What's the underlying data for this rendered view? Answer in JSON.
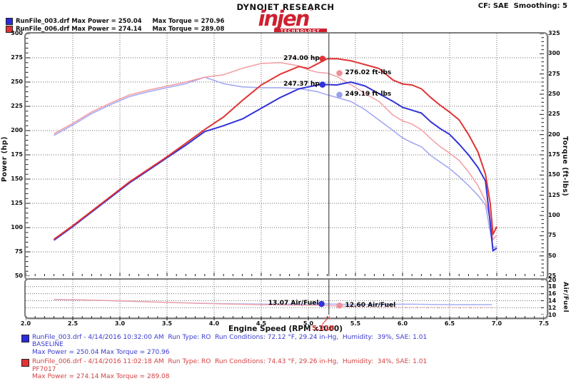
{
  "header": {
    "brand": "DYNOJET RESEARCH",
    "correction": "CF: SAE  Smoothing: 5",
    "logo": {
      "word": "injen",
      "tagline": "TECHNOLOGY",
      "tm": "™",
      "color": "#cf2030"
    },
    "legend_rows": [
      {
        "swatch_color": "#2b2bd8",
        "text": "RunFile_003.drf Max Power = 250.04     Max Torque = 270.96"
      },
      {
        "swatch_color": "#e03434",
        "text": "RunFile_006.drf Max Power = 274.14     Max Torque = 289.08"
      }
    ]
  },
  "chart_data": {
    "type": "line",
    "title": "",
    "xlabel": "Engine Speed (RPM x1000)",
    "xlim": [
      2.0,
      7.5
    ],
    "x_ticks": [
      2.0,
      2.5,
      3.0,
      3.5,
      4.0,
      4.5,
      5.0,
      5.5,
      6.0,
      6.5,
      7.0,
      7.5
    ],
    "x_minor_step": 0.1,
    "cursor_rpm": 5.218,
    "cursor_readout": "5.218",
    "main": {
      "left_axis": {
        "title": "Power (hp)",
        "min": 50,
        "max": 300,
        "tick_step": 25,
        "minor_step": 5
      },
      "right_axis": {
        "title": "Torque (ft-lbs)",
        "min": 25,
        "max": 325,
        "tick_step": 25,
        "minor_step": 5
      },
      "rpm": [
        2.3,
        2.5,
        2.7,
        2.9,
        3.1,
        3.3,
        3.5,
        3.7,
        3.9,
        4.1,
        4.3,
        4.5,
        4.7,
        4.9,
        5.0,
        5.1,
        5.2,
        5.3,
        5.45,
        5.6,
        5.75,
        5.9,
        6.0,
        6.1,
        6.2,
        6.3,
        6.4,
        6.5,
        6.6,
        6.7,
        6.8,
        6.88,
        6.93,
        6.96,
        7.0
      ],
      "series": [
        {
          "name": "torque-baseline",
          "legend": "RunFile_003.drf torque",
          "axis": "right",
          "color": "#a4aaf2",
          "width": 1.6,
          "values": [
            199,
            212,
            226,
            237,
            247,
            253,
            258,
            263,
            271,
            263,
            259,
            258,
            258,
            257,
            255,
            253,
            249.2,
            246,
            241,
            231,
            218,
            205,
            196,
            190,
            185,
            174,
            166,
            158,
            148,
            137,
            125,
            113,
            80,
            60,
            62
          ]
        },
        {
          "name": "torque-pf7017",
          "legend": "RunFile_006.drf torque",
          "axis": "right",
          "color": "#f2a2a8",
          "width": 1.6,
          "values": [
            201,
            214,
            228,
            239,
            249,
            255,
            260,
            265,
            271,
            274,
            282,
            288,
            289.1,
            285,
            280,
            277,
            276,
            272,
            262,
            251,
            241,
            224,
            217,
            213,
            206,
            195,
            185,
            177,
            168,
            154,
            137,
            118,
            95,
            70,
            76
          ]
        },
        {
          "name": "power-baseline",
          "legend": "RunFile_003.drf power",
          "axis": "left",
          "color": "#3232d8",
          "width": 2,
          "values": [
            87,
            101,
            116,
            131,
            146,
            159,
            172,
            185,
            199,
            205,
            212,
            223,
            234,
            243,
            245,
            247,
            247.4,
            247,
            250,
            246,
            238,
            230,
            224,
            221,
            218,
            209,
            202,
            196,
            186,
            175,
            162,
            148,
            105,
            76,
            79
          ]
        },
        {
          "name": "power-pf7017",
          "legend": "RunFile_006.drf power",
          "axis": "left",
          "color": "#e03434",
          "width": 2,
          "values": [
            88,
            102,
            117,
            132,
            147,
            160,
            173,
            187,
            201,
            214,
            231,
            247,
            258,
            266,
            264,
            269,
            274,
            274.1,
            272,
            268,
            264,
            252,
            248,
            247,
            243,
            234,
            226,
            219,
            211,
            196,
            178,
            155,
            125,
            93,
            101
          ]
        }
      ],
      "markers": [
        {
          "name": "power-cursor-pf7017",
          "label": "274.00 hp",
          "axis": "left",
          "rpm": 5.15,
          "value": 274.0,
          "color": "#e03434",
          "side": "left"
        },
        {
          "name": "torque-cursor-pf7017",
          "label": "276.02 ft-lbs",
          "axis": "right",
          "rpm": 5.33,
          "value": 276.02,
          "color": "#ef8f96",
          "side": "right"
        },
        {
          "name": "power-cursor-baseline",
          "label": "247.37 hp",
          "axis": "left",
          "rpm": 5.15,
          "value": 247.37,
          "color": "#3232d8",
          "side": "left"
        },
        {
          "name": "torque-cursor-baseline",
          "label": "249.19 ft-lbs",
          "axis": "right",
          "rpm": 5.33,
          "value": 249.19,
          "color": "#98a0ee",
          "side": "right"
        }
      ]
    },
    "af": {
      "right_axis": {
        "title": "Air/Fuel",
        "min": 10,
        "max": 20,
        "ticks": [
          20,
          18,
          16,
          14,
          12,
          10
        ],
        "grid": [
          18,
          16,
          14,
          12
        ]
      },
      "rpm": [
        2.3,
        2.6,
        3.0,
        3.4,
        3.8,
        4.2,
        4.6,
        5.0,
        5.2,
        5.5,
        5.8,
        6.1,
        6.4,
        6.7,
        6.95
      ],
      "series": [
        {
          "name": "af-baseline",
          "legend": "RunFile_003.drf air/fuel",
          "color": "#a4aaf2",
          "width": 1.4,
          "values": [
            14.3,
            14.2,
            13.9,
            13.6,
            13.3,
            13.1,
            13.0,
            13.05,
            13.07,
            12.9,
            12.95,
            13.0,
            12.9,
            12.85,
            12.9
          ]
        },
        {
          "name": "af-pf7017",
          "legend": "RunFile_006.drf air/fuel",
          "color": "#f2a2a8",
          "width": 1.4,
          "dash_after": 5.25,
          "values": [
            14.35,
            14.25,
            13.95,
            13.6,
            13.25,
            13.0,
            12.8,
            12.7,
            12.6,
            12.3,
            12.15,
            12.1,
            12.05,
            12.0,
            12.05
          ]
        }
      ],
      "markers": [
        {
          "name": "af-cursor-baseline",
          "label": "13.07 Air/Fuel",
          "rpm": 5.14,
          "value": 13.07,
          "color": "#3232d8",
          "side": "left"
        },
        {
          "name": "af-cursor-pf7017",
          "label": "12.60 Air/Fuel",
          "rpm": 5.33,
          "value": 12.6,
          "color": "#ef8f96",
          "side": "right"
        }
      ]
    }
  },
  "footer": {
    "runs": [
      {
        "swatch_color": "#2b2bd8",
        "text_color": "#3a3ace",
        "line1": "RunFile_003.drf - 4/14/2016 10:32:00 AM  Run Type: RO  Run Conditions: 72.12 °F, 29.24 in-Hg,  Humidity:  39%, SAE: 1.01",
        "line2": "BASELINE",
        "line3": "Max Power = 250.04  Max Torque = 270.96"
      },
      {
        "swatch_color": "#e03434",
        "text_color": "#d24343",
        "line1": "RunFile_006.drf - 4/14/2016 11:02:18 AM  Run Type: RO  Run Conditions: 74.43 °F, 29.26 in-Hg,  Humidity:  34%, SAE: 1.01",
        "line2": "PF7017",
        "line3": "Max Power = 274.14  Max Torque = 289.08"
      }
    ]
  }
}
